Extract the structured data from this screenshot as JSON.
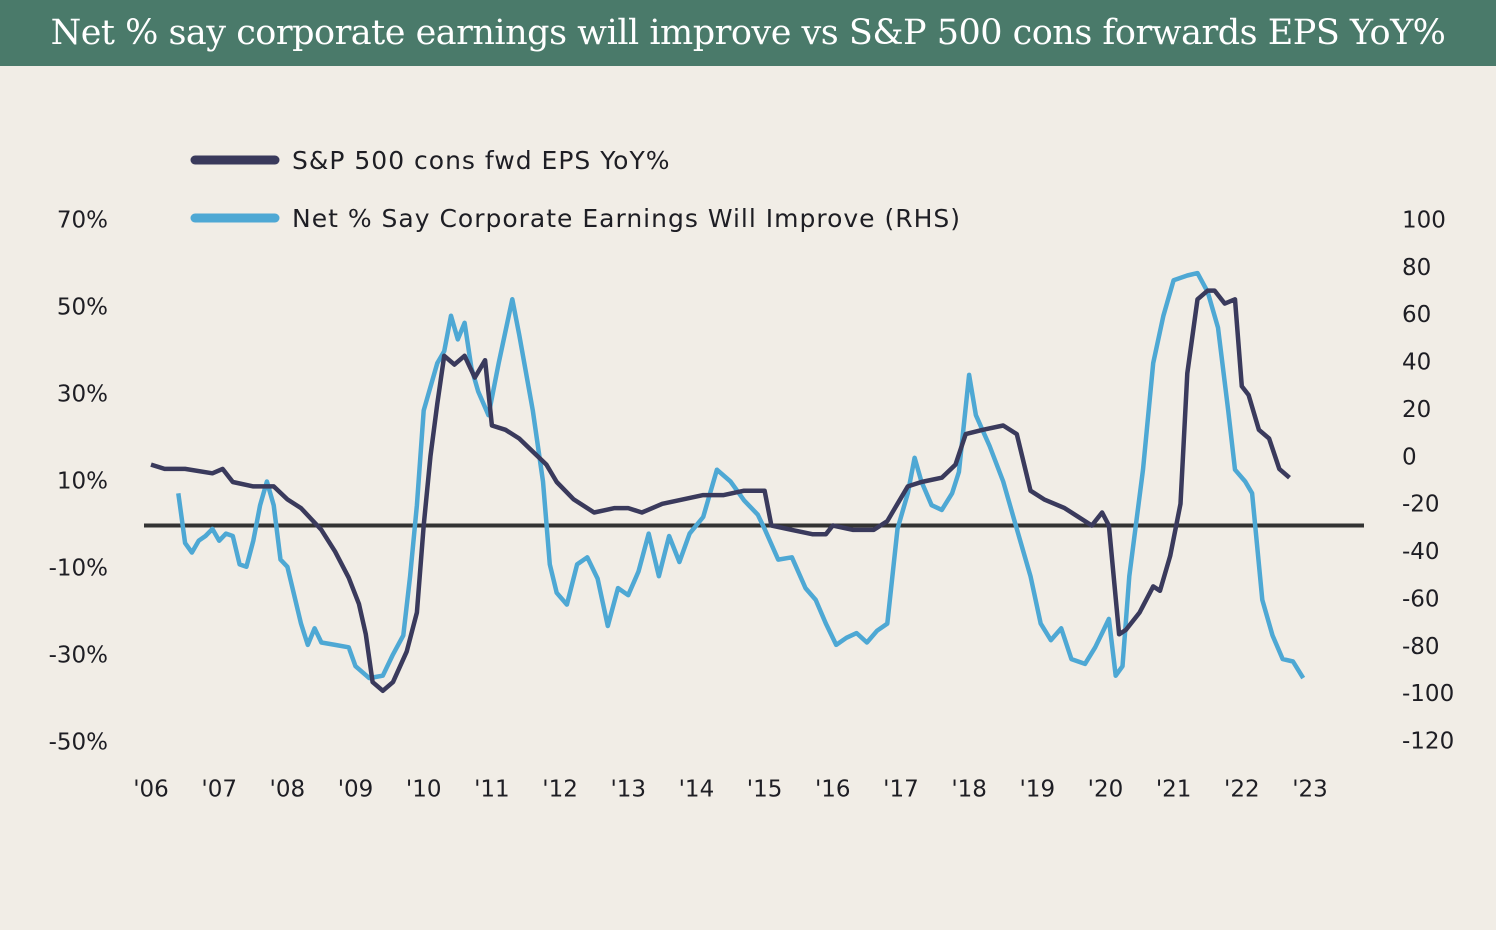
{
  "header": {
    "title": "Net % say corporate earnings will improve vs S&P 500 cons forwards EPS YoY%"
  },
  "colors": {
    "title_bg": "#4a7a6a",
    "background": "#f1ede6",
    "eps_line": "#3a3a5c",
    "net_line": "#4ea8d4",
    "zero_line": "#333333"
  },
  "chart_data": {
    "type": "line",
    "title": "Net % say corporate earnings will improve vs S&P 500 cons forwards EPS YoY%",
    "legend_placement": "top-left",
    "grid": false,
    "x_tick_labels": [
      "'06",
      "'07",
      "'08",
      "'09",
      "'10",
      "'11",
      "'12",
      "'13",
      "'14",
      "'15",
      "'16",
      "'17",
      "'18",
      "'19",
      "'20",
      "'21",
      "'22",
      "'23"
    ],
    "x_range": [
      2006,
      2023
    ],
    "left_axis": {
      "ticks": [
        70,
        50,
        30,
        10,
        -10,
        -30,
        -50
      ],
      "tick_labels": [
        "70%",
        "50%",
        "30%",
        "10%",
        "-10%",
        "-30%",
        "-50%"
      ],
      "range": [
        -50,
        70
      ]
    },
    "right_axis": {
      "ticks": [
        100,
        80,
        60,
        40,
        20,
        0,
        -20,
        -40,
        -60,
        -80,
        -100,
        -120
      ],
      "tick_labels": [
        "100",
        "80",
        "60",
        "40",
        "20",
        "0",
        "-20",
        "-40",
        "-60",
        "-80",
        "-100",
        "-120"
      ],
      "range": [
        -120,
        100
      ]
    },
    "series": [
      {
        "name": "S&P 500 cons fwd EPS YoY%",
        "axis": "left",
        "color": "#3a3a5c",
        "points": [
          [
            2006.0,
            14
          ],
          [
            2006.2,
            13
          ],
          [
            2006.5,
            13
          ],
          [
            2006.9,
            12
          ],
          [
            2007.05,
            13
          ],
          [
            2007.2,
            10
          ],
          [
            2007.5,
            9
          ],
          [
            2007.8,
            9
          ],
          [
            2008.0,
            6
          ],
          [
            2008.2,
            4
          ],
          [
            2008.5,
            -1
          ],
          [
            2008.7,
            -6
          ],
          [
            2008.9,
            -12
          ],
          [
            2009.05,
            -18
          ],
          [
            2009.15,
            -25
          ],
          [
            2009.25,
            -36
          ],
          [
            2009.4,
            -38
          ],
          [
            2009.55,
            -36
          ],
          [
            2009.75,
            -29
          ],
          [
            2009.9,
            -20
          ],
          [
            2010.0,
            0
          ],
          [
            2010.1,
            16
          ],
          [
            2010.2,
            28
          ],
          [
            2010.3,
            39
          ],
          [
            2010.45,
            37
          ],
          [
            2010.6,
            39
          ],
          [
            2010.75,
            34
          ],
          [
            2010.9,
            38
          ],
          [
            2011.0,
            23
          ],
          [
            2011.2,
            22
          ],
          [
            2011.4,
            20
          ],
          [
            2011.6,
            17
          ],
          [
            2011.8,
            14
          ],
          [
            2011.95,
            10
          ],
          [
            2012.2,
            6
          ],
          [
            2012.5,
            3
          ],
          [
            2012.8,
            4
          ],
          [
            2013.0,
            4
          ],
          [
            2013.2,
            3
          ],
          [
            2013.5,
            5
          ],
          [
            2013.8,
            6
          ],
          [
            2014.1,
            7
          ],
          [
            2014.4,
            7
          ],
          [
            2014.7,
            8
          ],
          [
            2015.0,
            8
          ],
          [
            2015.1,
            0
          ],
          [
            2015.4,
            -1
          ],
          [
            2015.7,
            -2
          ],
          [
            2015.9,
            -2
          ],
          [
            2016.0,
            0
          ],
          [
            2016.3,
            -1
          ],
          [
            2016.6,
            -1
          ],
          [
            2016.8,
            1
          ],
          [
            2016.95,
            5
          ],
          [
            2017.1,
            9
          ],
          [
            2017.3,
            10
          ],
          [
            2017.6,
            11
          ],
          [
            2017.8,
            14
          ],
          [
            2017.95,
            21
          ],
          [
            2018.2,
            22
          ],
          [
            2018.5,
            23
          ],
          [
            2018.7,
            21
          ],
          [
            2018.9,
            8
          ],
          [
            2019.1,
            6
          ],
          [
            2019.4,
            4
          ],
          [
            2019.6,
            2
          ],
          [
            2019.8,
            0
          ],
          [
            2019.95,
            3
          ],
          [
            2020.05,
            0
          ],
          [
            2020.2,
            -25
          ],
          [
            2020.3,
            -24
          ],
          [
            2020.5,
            -20
          ],
          [
            2020.7,
            -14
          ],
          [
            2020.8,
            -15
          ],
          [
            2020.95,
            -7
          ],
          [
            2021.1,
            5
          ],
          [
            2021.2,
            35
          ],
          [
            2021.35,
            52
          ],
          [
            2021.5,
            54
          ],
          [
            2021.6,
            54
          ],
          [
            2021.75,
            51
          ],
          [
            2021.9,
            52
          ],
          [
            2022.0,
            32
          ],
          [
            2022.1,
            30
          ],
          [
            2022.25,
            22
          ],
          [
            2022.4,
            20
          ],
          [
            2022.55,
            13
          ],
          [
            2022.7,
            11
          ]
        ]
      },
      {
        "name": "Net % Say Corporate Earnings Will Improve (RHS)",
        "axis": "right",
        "color": "#4ea8d4",
        "points": [
          [
            2006.4,
            -15
          ],
          [
            2006.5,
            -36
          ],
          [
            2006.6,
            -40
          ],
          [
            2006.7,
            -35
          ],
          [
            2006.8,
            -33
          ],
          [
            2006.9,
            -30
          ],
          [
            2007.0,
            -35
          ],
          [
            2007.1,
            -32
          ],
          [
            2007.2,
            -33
          ],
          [
            2007.3,
            -45
          ],
          [
            2007.4,
            -46
          ],
          [
            2007.5,
            -35
          ],
          [
            2007.6,
            -20
          ],
          [
            2007.7,
            -10
          ],
          [
            2007.8,
            -20
          ],
          [
            2007.9,
            -43
          ],
          [
            2008.0,
            -46
          ],
          [
            2008.1,
            -58
          ],
          [
            2008.2,
            -70
          ],
          [
            2008.3,
            -79
          ],
          [
            2008.4,
            -72
          ],
          [
            2008.5,
            -78
          ],
          [
            2008.7,
            -79
          ],
          [
            2008.9,
            -80
          ],
          [
            2009.0,
            -88
          ],
          [
            2009.2,
            -93
          ],
          [
            2009.4,
            -92
          ],
          [
            2009.55,
            -83
          ],
          [
            2009.7,
            -75
          ],
          [
            2009.8,
            -50
          ],
          [
            2009.9,
            -20
          ],
          [
            2010.0,
            20
          ],
          [
            2010.2,
            40
          ],
          [
            2010.3,
            45
          ],
          [
            2010.4,
            60
          ],
          [
            2010.5,
            50
          ],
          [
            2010.6,
            57
          ],
          [
            2010.7,
            38
          ],
          [
            2010.8,
            28
          ],
          [
            2010.95,
            18
          ],
          [
            2011.1,
            40
          ],
          [
            2011.3,
            67
          ],
          [
            2011.4,
            52
          ],
          [
            2011.6,
            20
          ],
          [
            2011.75,
            -10
          ],
          [
            2011.85,
            -45
          ],
          [
            2011.95,
            -57
          ],
          [
            2012.1,
            -62
          ],
          [
            2012.25,
            -45
          ],
          [
            2012.4,
            -42
          ],
          [
            2012.55,
            -51
          ],
          [
            2012.7,
            -71
          ],
          [
            2012.85,
            -55
          ],
          [
            2013.0,
            -58
          ],
          [
            2013.15,
            -48
          ],
          [
            2013.3,
            -32
          ],
          [
            2013.45,
            -50
          ],
          [
            2013.6,
            -33
          ],
          [
            2013.75,
            -44
          ],
          [
            2013.9,
            -32
          ],
          [
            2014.1,
            -25
          ],
          [
            2014.3,
            -5
          ],
          [
            2014.5,
            -10
          ],
          [
            2014.7,
            -18
          ],
          [
            2014.9,
            -24
          ],
          [
            2015.0,
            -30
          ],
          [
            2015.2,
            -43
          ],
          [
            2015.4,
            -42
          ],
          [
            2015.6,
            -55
          ],
          [
            2015.75,
            -60
          ],
          [
            2015.9,
            -70
          ],
          [
            2016.05,
            -79
          ],
          [
            2016.2,
            -76
          ],
          [
            2016.35,
            -74
          ],
          [
            2016.5,
            -78
          ],
          [
            2016.65,
            -73
          ],
          [
            2016.8,
            -70
          ],
          [
            2016.95,
            -30
          ],
          [
            2017.1,
            -15
          ],
          [
            2017.2,
            0
          ],
          [
            2017.3,
            -10
          ],
          [
            2017.45,
            -20
          ],
          [
            2017.6,
            -22
          ],
          [
            2017.75,
            -15
          ],
          [
            2017.85,
            -6
          ],
          [
            2018.0,
            35
          ],
          [
            2018.1,
            18
          ],
          [
            2018.3,
            5
          ],
          [
            2018.5,
            -10
          ],
          [
            2018.7,
            -30
          ],
          [
            2018.9,
            -50
          ],
          [
            2019.05,
            -70
          ],
          [
            2019.2,
            -77
          ],
          [
            2019.35,
            -72
          ],
          [
            2019.5,
            -85
          ],
          [
            2019.7,
            -87
          ],
          [
            2019.85,
            -80
          ],
          [
            2019.95,
            -74
          ],
          [
            2020.05,
            -68
          ],
          [
            2020.15,
            -92
          ],
          [
            2020.25,
            -88
          ],
          [
            2020.35,
            -50
          ],
          [
            2020.55,
            -5
          ],
          [
            2020.7,
            40
          ],
          [
            2020.85,
            60
          ],
          [
            2021.0,
            75
          ],
          [
            2021.2,
            77
          ],
          [
            2021.35,
            78
          ],
          [
            2021.5,
            70
          ],
          [
            2021.65,
            55
          ],
          [
            2021.8,
            20
          ],
          [
            2021.9,
            -5
          ],
          [
            2022.05,
            -10
          ],
          [
            2022.15,
            -15
          ],
          [
            2022.3,
            -60
          ],
          [
            2022.45,
            -75
          ],
          [
            2022.6,
            -85
          ],
          [
            2022.75,
            -86
          ],
          [
            2022.9,
            -93
          ]
        ]
      }
    ]
  }
}
